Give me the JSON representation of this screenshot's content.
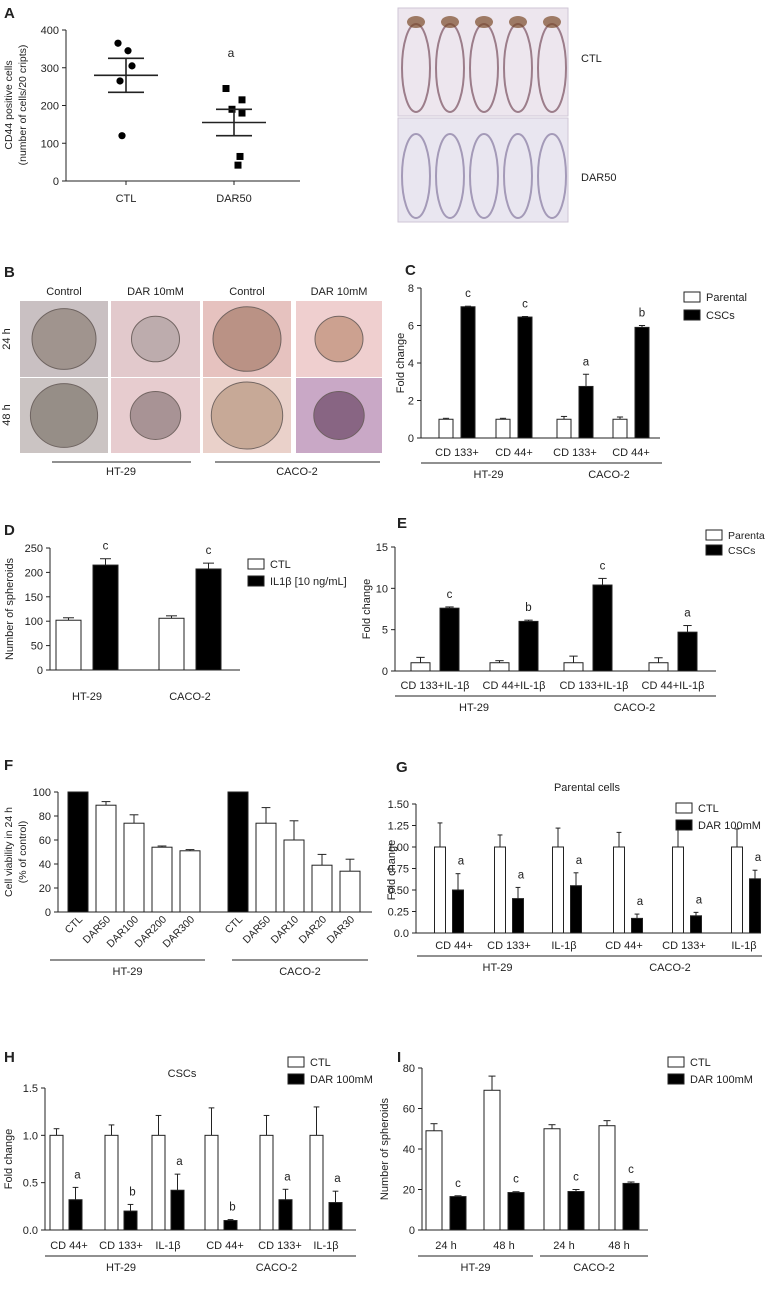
{
  "panels": {
    "A": {
      "letter": "A",
      "ylabel_line1": "CD44  positive  cells",
      "ylabel_line2": "(number of cells/20 cripts)",
      "categories": [
        "CTL",
        "DAR50"
      ],
      "yticks": [
        "0",
        "100",
        "200",
        "300",
        "400"
      ],
      "annotation": "a",
      "image_labels": [
        "CTL",
        "DAR50"
      ]
    },
    "B": {
      "letter": "B",
      "col_labels": [
        "Control",
        "DAR 10mM",
        "Control",
        "DAR 10mM"
      ],
      "row_labels": [
        "24 h",
        "48 h"
      ],
      "group_labels": [
        "HT-29",
        "CACO-2"
      ]
    },
    "C": {
      "letter": "C",
      "ylabel": "Fold change",
      "yticks": [
        "0",
        "2",
        "4",
        "6",
        "8"
      ],
      "categories": [
        "CD 133+",
        "CD 44+",
        "CD 133+",
        "CD 44+"
      ],
      "groups": [
        "HT-29",
        "CACO-2"
      ],
      "legend": [
        "Parental",
        "CSCs"
      ],
      "annotations": [
        "c",
        "c",
        "a",
        "b"
      ]
    },
    "D": {
      "letter": "D",
      "ylabel": "Number of spheroids",
      "yticks": [
        "0",
        "50",
        "100",
        "150",
        "200",
        "250"
      ],
      "categories": [
        "HT-29",
        "CACO-2"
      ],
      "legend": [
        "CTL",
        "IL1β [10 ng/mL]"
      ],
      "annotations": [
        "c",
        "c"
      ]
    },
    "E": {
      "letter": "E",
      "ylabel": "Fold change",
      "yticks": [
        "0",
        "5",
        "10",
        "15"
      ],
      "categories": [
        "CD 133+IL-1β",
        "CD 44+IL-1β",
        "CD 133+IL-1β",
        "CD 44+IL-1β"
      ],
      "groups": [
        "HT-29",
        "CACO-2"
      ],
      "legend": [
        "Parental",
        "CSCs"
      ],
      "annotations": [
        "c",
        "b",
        "c",
        "a"
      ]
    },
    "F": {
      "letter": "F",
      "ylabel_line1": "Cell viability in 24 h",
      "ylabel_line2": "(% of control)",
      "yticks": [
        "0",
        "20",
        "40",
        "60",
        "80",
        "100"
      ],
      "categories": [
        "CTL",
        "DAR50",
        "DAR100",
        "DAR200",
        "DAR300",
        "CTL",
        "DAR50",
        "DAR10",
        "DAR20",
        "DAR30"
      ],
      "groups": [
        "HT-29",
        "CACO-2"
      ]
    },
    "G": {
      "letter": "G",
      "title": "Parental cells",
      "ylabel": "Fold change",
      "yticks": [
        "0.0",
        "0.25",
        "0.50",
        "0.75",
        "1.00",
        "1.25",
        "1.50"
      ],
      "categories": [
        "CD 44+",
        "CD 133+",
        "IL-1β",
        "CD 44+",
        "CD 133+",
        "IL-1β"
      ],
      "groups": [
        "HT-29",
        "CACO-2"
      ],
      "legend": [
        "CTL",
        "DAR 100mM"
      ],
      "annotations": [
        "a",
        "a",
        "a",
        "a",
        "a",
        "a"
      ]
    },
    "H": {
      "letter": "H",
      "title": "CSCs",
      "ylabel": "Fold change",
      "yticks": [
        "0.0",
        "0.5",
        "1.0",
        "1.5"
      ],
      "categories": [
        "CD 44+",
        "CD 133+",
        "IL-1β",
        "CD 44+",
        "CD 133+",
        "IL-1β"
      ],
      "groups": [
        "HT-29",
        "CACO-2"
      ],
      "legend": [
        "CTL",
        "DAR 100mM"
      ],
      "annotations": [
        "a",
        "b",
        "a",
        "b",
        "a",
        "a"
      ]
    },
    "I": {
      "letter": "I",
      "ylabel": "Number of spheroids",
      "yticks": [
        "0",
        "20",
        "40",
        "60",
        "80"
      ],
      "categories": [
        "24 h",
        "48 h",
        "24 h",
        "48 h"
      ],
      "groups": [
        "HT-29",
        "CACO-2"
      ],
      "legend": [
        "CTL",
        "DAR 100mM"
      ],
      "annotations": [
        "c",
        "c",
        "c",
        "c"
      ]
    }
  },
  "chart_data": [
    {
      "panel": "A",
      "type": "scatter",
      "ylim": [
        0,
        400
      ],
      "series": [
        {
          "name": "CTL",
          "values": [
            365,
            345,
            305,
            265,
            120
          ],
          "mean": 280,
          "sem": 45
        },
        {
          "name": "DAR50",
          "values": [
            245,
            215,
            190,
            180,
            65,
            42
          ],
          "mean": 155,
          "sem": 35
        }
      ]
    },
    {
      "panel": "C",
      "type": "bar",
      "ylim": [
        0,
        8
      ],
      "series": [
        {
          "name": "Parental",
          "values": [
            1,
            1,
            1,
            1
          ],
          "errors": [
            0.05,
            0.05,
            0.15,
            0.12
          ]
        },
        {
          "name": "CSCs",
          "values": [
            7.0,
            6.45,
            2.75,
            5.9
          ],
          "errors": [
            0.03,
            0.03,
            0.65,
            0.1
          ]
        }
      ]
    },
    {
      "panel": "D",
      "type": "bar",
      "ylim": [
        0,
        250
      ],
      "series": [
        {
          "name": "CTL",
          "values": [
            102,
            106
          ],
          "errors": [
            5,
            5
          ]
        },
        {
          "name": "IL1β [10 ng/mL]",
          "values": [
            215,
            207
          ],
          "errors": [
            13,
            12
          ]
        }
      ]
    },
    {
      "panel": "E",
      "type": "bar",
      "ylim": [
        0,
        15
      ],
      "series": [
        {
          "name": "Parental",
          "values": [
            1,
            1,
            1,
            1
          ],
          "errors": [
            0.65,
            0.25,
            0.8,
            0.6
          ]
        },
        {
          "name": "CSCs",
          "values": [
            7.6,
            6.0,
            10.4,
            4.7
          ],
          "errors": [
            0.15,
            0.15,
            0.8,
            0.8
          ]
        }
      ]
    },
    {
      "panel": "F",
      "type": "bar",
      "ylim": [
        0,
        100
      ],
      "values": [
        100,
        89,
        74,
        54,
        51,
        100,
        74,
        60,
        39,
        34
      ],
      "errors": [
        0,
        3,
        7,
        1,
        1,
        0,
        13,
        16,
        9,
        10
      ]
    },
    {
      "panel": "G",
      "type": "bar",
      "ylim": [
        0,
        1.5
      ],
      "series": [
        {
          "name": "CTL",
          "values": [
            1,
            1,
            1,
            1,
            1,
            1
          ],
          "errors": [
            0.28,
            0.14,
            0.22,
            0.17,
            0.24,
            0.21
          ]
        },
        {
          "name": "DAR 100mM",
          "values": [
            0.5,
            0.4,
            0.55,
            0.17,
            0.2,
            0.63
          ],
          "errors": [
            0.19,
            0.13,
            0.15,
            0.05,
            0.04,
            0.1
          ]
        }
      ]
    },
    {
      "panel": "H",
      "type": "bar",
      "ylim": [
        0,
        1.5
      ],
      "series": [
        {
          "name": "CTL",
          "values": [
            1,
            1,
            1,
            1,
            1,
            1
          ],
          "errors": [
            0.07,
            0.11,
            0.21,
            0.29,
            0.21,
            0.3
          ]
        },
        {
          "name": "DAR 100mM",
          "values": [
            0.32,
            0.2,
            0.42,
            0.1,
            0.32,
            0.29
          ],
          "errors": [
            0.13,
            0.07,
            0.17,
            0.01,
            0.11,
            0.12
          ]
        }
      ]
    },
    {
      "panel": "I",
      "type": "bar",
      "ylim": [
        0,
        80
      ],
      "series": [
        {
          "name": "CTL",
          "values": [
            49,
            69,
            50,
            51.5
          ],
          "errors": [
            3.5,
            7,
            2,
            2.5
          ]
        },
        {
          "name": "DAR 100mM",
          "values": [
            16.5,
            18.5,
            19,
            23
          ],
          "errors": [
            0.4,
            0.4,
            1,
            0.7
          ]
        }
      ]
    }
  ]
}
